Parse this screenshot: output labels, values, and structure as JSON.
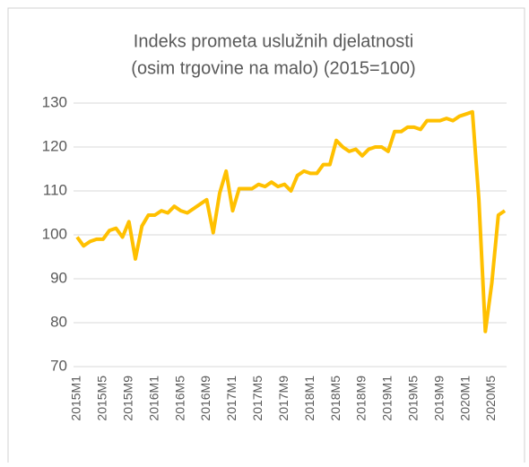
{
  "chart_data": {
    "type": "line",
    "title": [
      "Indeks prometa uslužnih  djelatnosti",
      "(osim trgovine na malo) (2015=100)"
    ],
    "categories": [
      "2015M1",
      null,
      null,
      null,
      "2015M5",
      null,
      null,
      null,
      "2015M9",
      null,
      null,
      null,
      "2016M1",
      null,
      null,
      null,
      "2016M5",
      null,
      null,
      null,
      "2016M9",
      null,
      null,
      null,
      "2017M1",
      null,
      null,
      null,
      "2017M5",
      null,
      null,
      null,
      "2017M9",
      null,
      null,
      null,
      "2018M1",
      null,
      null,
      null,
      "2018M5",
      null,
      null,
      null,
      "2018M9",
      null,
      null,
      null,
      "2019M1",
      null,
      null,
      null,
      "2019M5",
      null,
      null,
      null,
      "2019M9",
      null,
      null,
      null,
      "2020M1",
      null,
      null,
      null,
      "2020M5",
      null,
      null
    ],
    "series": [
      {
        "name": "Indeks",
        "color": "#FFC000",
        "values": [
          99.5,
          97.5,
          98.5,
          99,
          99,
          101,
          101.5,
          99.5,
          103,
          94.5,
          102,
          104.5,
          104.5,
          105.5,
          105,
          106.5,
          105.5,
          105,
          106,
          107,
          108,
          100.5,
          109.5,
          114.5,
          105.5,
          110.5,
          110.5,
          110.5,
          111.5,
          111,
          112,
          111,
          111.5,
          110,
          113.5,
          114.5,
          114,
          114,
          116,
          116,
          121.5,
          120,
          119,
          119.5,
          118,
          119.5,
          120,
          120,
          119,
          123.5,
          123.5,
          124.5,
          124.5,
          124,
          126,
          126,
          126,
          126.5,
          126,
          127,
          127.5,
          128,
          108,
          78,
          89,
          104.5,
          105.5
        ]
      }
    ],
    "ylim": [
      70,
      130
    ],
    "yticks": [
      70,
      80,
      90,
      100,
      110,
      120,
      130
    ],
    "grid": true
  }
}
